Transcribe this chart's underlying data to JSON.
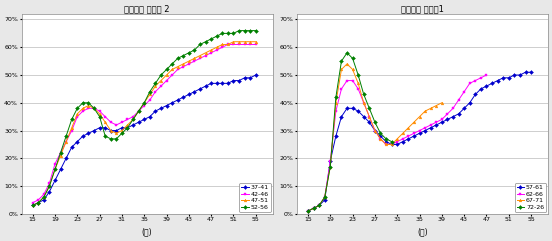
{
  "chart1_title": "코호트별 고용율 2",
  "chart2_title": "코호트별 고용윕1",
  "xlabel": "(세)",
  "xticks": [
    15,
    19,
    23,
    27,
    31,
    35,
    39,
    43,
    47,
    51,
    55
  ],
  "yticks": [
    0,
    10,
    20,
    30,
    40,
    50,
    60,
    70
  ],
  "chart1_legend": [
    "37-41",
    "42-46",
    "47-51",
    "52-56"
  ],
  "chart2_legend": [
    "57-61",
    "62-66",
    "67-71",
    "72-26"
  ],
  "chart1_colors": [
    "#0000CC",
    "#FF00FF",
    "#FF8C00",
    "#008000"
  ],
  "chart2_colors": [
    "#0000CC",
    "#FF00FF",
    "#FF8C00",
    "#008000"
  ],
  "bg_color": "#e8e8e8",
  "chart1_data": {
    "37-41": {
      "x": [
        15,
        16,
        17,
        18,
        19,
        20,
        21,
        22,
        23,
        24,
        25,
        26,
        27,
        28,
        29,
        30,
        31,
        32,
        33,
        34,
        35,
        36,
        37,
        38,
        39,
        40,
        41,
        42,
        43,
        44,
        45,
        46,
        47,
        48,
        49,
        50,
        51,
        52,
        53,
        54,
        55
      ],
      "y": [
        3,
        4,
        5,
        8,
        12,
        16,
        20,
        24,
        26,
        28,
        29,
        30,
        31,
        31,
        30,
        30,
        31,
        31,
        32,
        33,
        34,
        35,
        37,
        38,
        39,
        40,
        41,
        42,
        43,
        44,
        45,
        46,
        47,
        47,
        47,
        47,
        48,
        48,
        49,
        49,
        50
      ]
    },
    "42-46": {
      "x": [
        15,
        16,
        17,
        18,
        19,
        20,
        21,
        22,
        23,
        24,
        25,
        26,
        27,
        28,
        29,
        30,
        31,
        32,
        33,
        34,
        35,
        36,
        37,
        38,
        39,
        40,
        41,
        42,
        43,
        44,
        45,
        46,
        47,
        48,
        49,
        50,
        51,
        52,
        53,
        54,
        55
      ],
      "y": [
        4,
        5,
        7,
        11,
        18,
        22,
        26,
        30,
        35,
        37,
        38,
        38,
        37,
        35,
        33,
        32,
        33,
        34,
        35,
        37,
        39,
        41,
        44,
        46,
        48,
        50,
        52,
        53,
        54,
        55,
        56,
        57,
        58,
        59,
        60,
        61,
        61,
        61,
        61,
        61,
        61
      ]
    },
    "47-51": {
      "x": [
        15,
        16,
        17,
        18,
        19,
        20,
        21,
        22,
        23,
        24,
        25,
        26,
        27,
        28,
        29,
        30,
        31,
        32,
        33,
        34,
        35,
        36,
        37,
        38,
        39,
        40,
        41,
        42,
        43,
        44,
        45,
        46,
        47,
        48,
        49,
        50,
        51,
        52,
        53,
        54,
        55
      ],
      "y": [
        3,
        4,
        6,
        10,
        16,
        21,
        26,
        31,
        36,
        38,
        39,
        38,
        36,
        33,
        30,
        29,
        30,
        32,
        34,
        37,
        40,
        43,
        46,
        48,
        50,
        52,
        53,
        54,
        55,
        56,
        57,
        58,
        59,
        60,
        61,
        61,
        62,
        62,
        62,
        62,
        62
      ]
    },
    "52-56": {
      "x": [
        15,
        16,
        17,
        18,
        19,
        20,
        21,
        22,
        23,
        24,
        25,
        26,
        27,
        28,
        29,
        30,
        31,
        32,
        33,
        34,
        35,
        36,
        37,
        38,
        39,
        40,
        41,
        42,
        43,
        44,
        45,
        46,
        47,
        48,
        49,
        50,
        51,
        52,
        53,
        54,
        55
      ],
      "y": [
        3,
        4,
        6,
        10,
        16,
        22,
        28,
        34,
        38,
        40,
        40,
        38,
        35,
        28,
        27,
        27,
        29,
        31,
        34,
        37,
        40,
        44,
        47,
        50,
        52,
        54,
        56,
        57,
        58,
        59,
        61,
        62,
        63,
        64,
        65,
        65,
        65,
        66,
        66,
        66,
        66
      ]
    }
  },
  "chart2_data": {
    "57-61": {
      "x": [
        15,
        16,
        17,
        18,
        19,
        20,
        21,
        22,
        23,
        24,
        25,
        26,
        27,
        28,
        29,
        30,
        31,
        32,
        33,
        34,
        35,
        36,
        37,
        38,
        39,
        40,
        41,
        42,
        43,
        44,
        45,
        46,
        47,
        48,
        49,
        50,
        51,
        52,
        53,
        54,
        55
      ],
      "y": [
        1,
        2,
        3,
        5,
        19,
        28,
        35,
        38,
        38,
        37,
        35,
        33,
        30,
        28,
        26,
        25,
        25,
        26,
        27,
        28,
        29,
        30,
        31,
        32,
        33,
        34,
        35,
        36,
        38,
        40,
        43,
        45,
        46,
        47,
        48,
        49,
        49,
        50,
        50,
        51,
        51
      ]
    },
    "62-66": {
      "x": [
        15,
        16,
        17,
        18,
        19,
        20,
        21,
        22,
        23,
        24,
        25,
        26,
        27,
        28,
        29,
        30,
        31,
        32,
        33,
        34,
        35,
        36,
        37,
        38,
        39,
        40,
        41,
        42,
        43,
        44,
        45,
        46,
        47
      ],
      "y": [
        1,
        2,
        3,
        6,
        19,
        37,
        45,
        48,
        48,
        45,
        40,
        35,
        30,
        27,
        25,
        25,
        26,
        27,
        28,
        29,
        30,
        31,
        32,
        33,
        34,
        36,
        38,
        41,
        44,
        47,
        48,
        49,
        50
      ]
    },
    "67-71": {
      "x": [
        15,
        16,
        17,
        18,
        19,
        20,
        21,
        22,
        23,
        24,
        25,
        26,
        27,
        28,
        29,
        30,
        31,
        32,
        33,
        34,
        35,
        36,
        37,
        38,
        39
      ],
      "y": [
        1,
        2,
        3,
        6,
        17,
        40,
        52,
        54,
        52,
        47,
        40,
        35,
        30,
        27,
        25,
        25,
        27,
        29,
        31,
        33,
        35,
        37,
        38,
        39,
        40
      ]
    },
    "72-26": {
      "x": [
        15,
        16,
        17,
        18,
        19,
        20,
        21,
        22,
        23,
        24,
        25,
        26,
        27,
        28,
        29,
        30
      ],
      "y": [
        1,
        2,
        3,
        6,
        17,
        42,
        55,
        58,
        56,
        50,
        43,
        38,
        33,
        29,
        27,
        26
      ]
    }
  }
}
